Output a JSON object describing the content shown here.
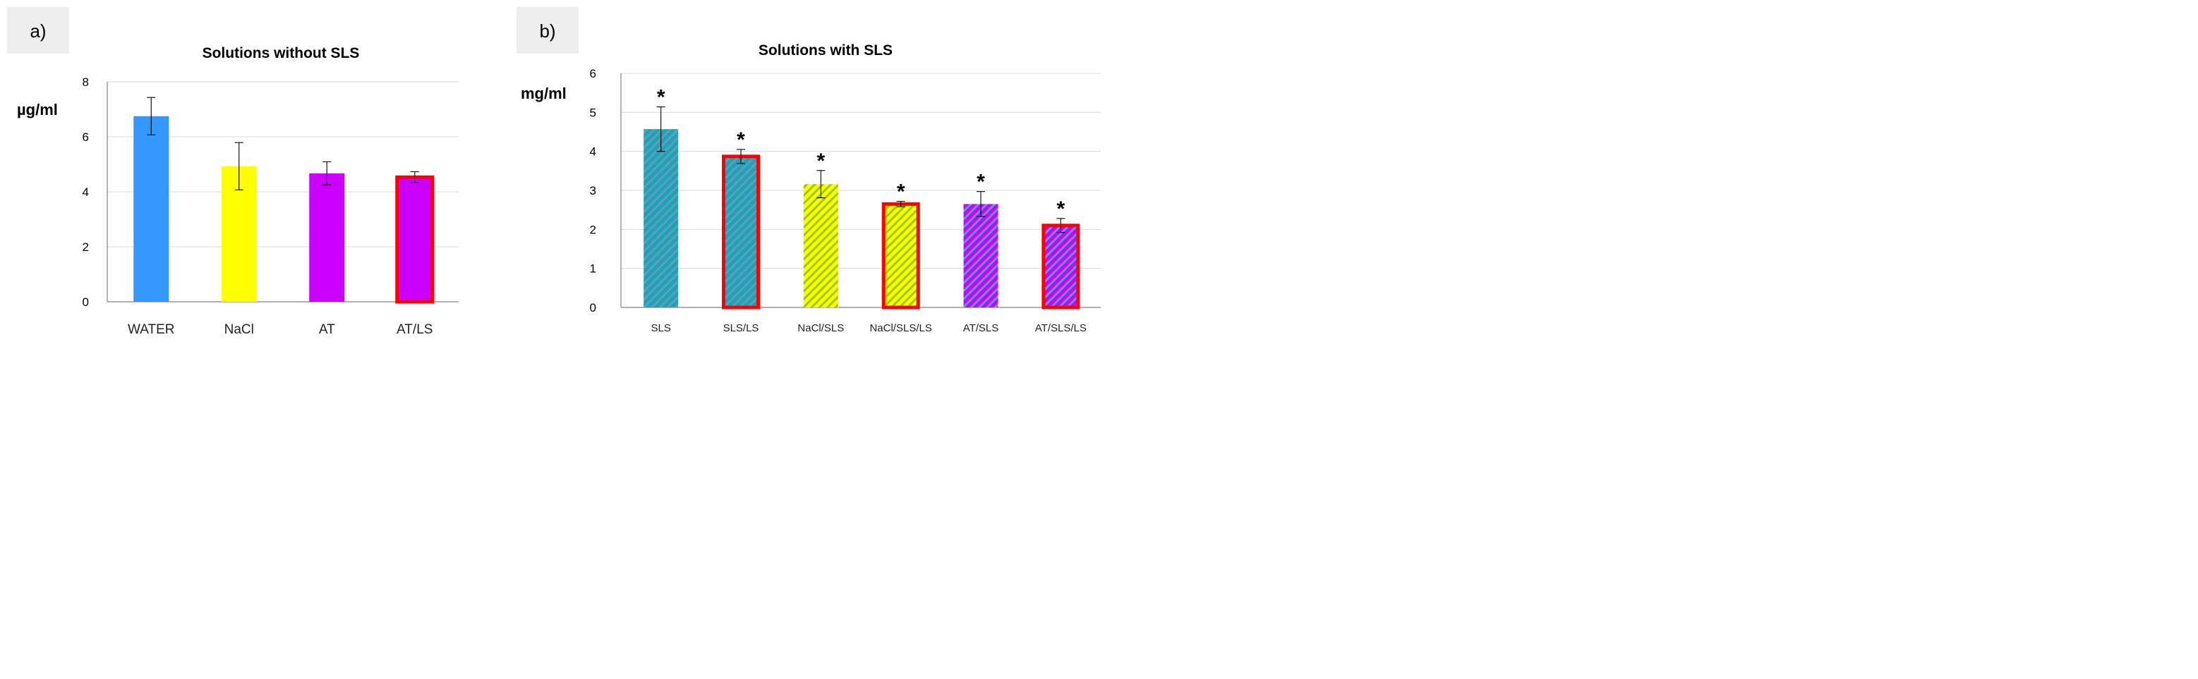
{
  "colors": {
    "water": "#3399ff",
    "nacl": "#ffff00",
    "at": "#cc00ff",
    "teal": "#1fa4a8",
    "stripe_blue": "#5b9bd5",
    "stripe_nacl": "#99cc00",
    "outline": "#ff0000"
  },
  "chart_data": [
    {
      "type": "bar",
      "panel_label": "a)",
      "title": "Solutions without SLS",
      "ylabel": "µg/ml",
      "xlabel": "",
      "ylim": [
        0,
        8
      ],
      "yticks": [
        "0",
        "2",
        "4",
        "6",
        "8"
      ],
      "grid": true,
      "categories": [
        "WATER",
        "NaCl",
        "AT",
        "AT/LS"
      ],
      "values": [
        6.75,
        4.93,
        4.67,
        4.53
      ],
      "errors": [
        0.68,
        0.86,
        0.42,
        0.2
      ],
      "fills": [
        "water",
        "nacl",
        "at",
        "at"
      ],
      "patterns": [
        false,
        false,
        false,
        false
      ],
      "outlined": [
        false,
        false,
        false,
        true
      ],
      "significance": [
        "",
        "",
        "",
        ""
      ]
    },
    {
      "type": "bar",
      "panel_label": "b)",
      "title": "Solutions with SLS",
      "ylabel": "mg/ml",
      "xlabel": "",
      "ylim": [
        0,
        6
      ],
      "yticks": [
        "0",
        "1",
        "2",
        "3",
        "4",
        "5",
        "6"
      ],
      "grid": true,
      "categories": [
        "SLS",
        "SLS/LS",
        "NaCl/SLS",
        "NaCl/SLS/LS",
        "AT/SLS",
        "AT/SLS/LS"
      ],
      "values": [
        4.57,
        3.87,
        3.16,
        2.65,
        2.65,
        2.1
      ],
      "errors": [
        0.57,
        0.18,
        0.35,
        0.07,
        0.32,
        0.18
      ],
      "fills": [
        "teal",
        "teal",
        "nacl",
        "nacl",
        "at",
        "at"
      ],
      "stripes": [
        "stripe_blue",
        "stripe_blue",
        "stripe_nacl",
        "stripe_nacl",
        "stripe_blue",
        "stripe_blue"
      ],
      "patterns": [
        true,
        true,
        true,
        true,
        true,
        true
      ],
      "outlined": [
        false,
        true,
        false,
        true,
        false,
        true
      ],
      "significance": [
        "*",
        "*",
        "*",
        "*",
        "*",
        "*"
      ]
    }
  ]
}
